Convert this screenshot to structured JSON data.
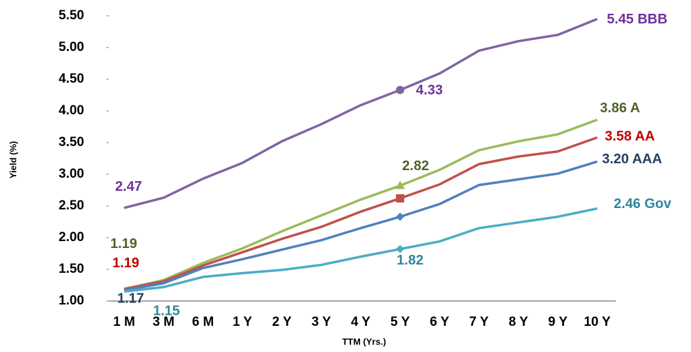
{
  "chart_data": {
    "type": "line",
    "xlabel": "TTM (Yrs.)",
    "ylabel": "Yield (%)",
    "categories": [
      "1 M",
      "3 M",
      "6 M",
      "1 Y",
      "2 Y",
      "3 Y",
      "4 Y",
      "5 Y",
      "6 Y",
      "7 Y",
      "8 Y",
      "9 Y",
      "10 Y"
    ],
    "ylim": [
      1.0,
      5.5
    ],
    "yticks": [
      {
        "value": 1.0,
        "label": "1.00"
      },
      {
        "value": 1.5,
        "label": "1.50"
      },
      {
        "value": 2.0,
        "label": "2.00"
      },
      {
        "value": 2.5,
        "label": "2.50"
      },
      {
        "value": 3.0,
        "label": "3.00"
      },
      {
        "value": 3.5,
        "label": "3.50"
      },
      {
        "value": 4.0,
        "label": "4.00"
      },
      {
        "value": 4.5,
        "label": "4.50"
      },
      {
        "value": 5.0,
        "label": "5.00"
      },
      {
        "value": 5.5,
        "label": "5.50"
      }
    ],
    "grid": false,
    "series": [
      {
        "color": "#8064a2",
        "label_color": "#7030a0",
        "values": [
          2.47,
          2.63,
          2.93,
          3.18,
          3.52,
          3.79,
          4.09,
          4.33,
          4.59,
          4.95,
          5.1,
          5.2,
          5.45
        ],
        "value_labels": [
          "2.47",
          null,
          null,
          null,
          null,
          null,
          null,
          "4.33",
          null,
          null,
          null,
          null,
          "5.45 BBB"
        ],
        "markers": [
          null,
          null,
          null,
          null,
          null,
          null,
          null,
          "circle",
          null,
          null,
          null,
          null,
          null
        ]
      },
      {
        "color": "#9bbb59",
        "label_color": "#4f6228",
        "values": [
          1.19,
          1.33,
          1.6,
          1.83,
          2.1,
          2.35,
          2.6,
          2.82,
          3.07,
          3.38,
          3.52,
          3.63,
          3.86
        ],
        "value_labels": [
          "1.19",
          null,
          null,
          null,
          null,
          null,
          null,
          "2.82",
          null,
          null,
          null,
          null,
          "3.86 A"
        ],
        "markers": [
          null,
          null,
          null,
          null,
          null,
          null,
          null,
          "triangle",
          null,
          null,
          null,
          null,
          null
        ]
      },
      {
        "color": "#c0504d",
        "label_color": "#c00000",
        "values": [
          1.19,
          1.31,
          1.56,
          1.77,
          1.98,
          2.17,
          2.41,
          2.62,
          2.84,
          3.16,
          3.28,
          3.36,
          3.58
        ],
        "value_labels": [
          "1.19",
          null,
          null,
          null,
          null,
          null,
          null,
          null,
          null,
          null,
          null,
          null,
          "3.58 AA"
        ],
        "markers": [
          null,
          null,
          null,
          null,
          null,
          null,
          null,
          "square",
          null,
          null,
          null,
          null,
          null
        ]
      },
      {
        "color": "#4f81bd",
        "label_color": "#254061",
        "values": [
          1.17,
          1.28,
          1.52,
          1.66,
          1.81,
          1.96,
          2.15,
          2.33,
          2.53,
          2.83,
          2.92,
          3.01,
          3.2
        ],
        "value_labels": [
          "1.17",
          null,
          null,
          null,
          null,
          null,
          null,
          null,
          null,
          null,
          null,
          null,
          "3.20 AAA"
        ],
        "markers": [
          null,
          null,
          null,
          null,
          null,
          null,
          null,
          "diamond",
          null,
          null,
          null,
          null,
          null
        ]
      },
      {
        "color": "#4bacc6",
        "label_color": "#31859c",
        "values": [
          1.15,
          1.22,
          1.38,
          1.44,
          1.49,
          1.57,
          1.7,
          1.82,
          1.94,
          2.15,
          2.24,
          2.33,
          2.46
        ],
        "value_labels": [
          "1.15",
          null,
          null,
          null,
          null,
          null,
          null,
          "1.82",
          null,
          null,
          null,
          null,
          "2.46 Gov"
        ],
        "markers": [
          null,
          null,
          null,
          null,
          null,
          null,
          null,
          "diamond",
          null,
          null,
          null,
          null,
          null
        ]
      }
    ]
  }
}
